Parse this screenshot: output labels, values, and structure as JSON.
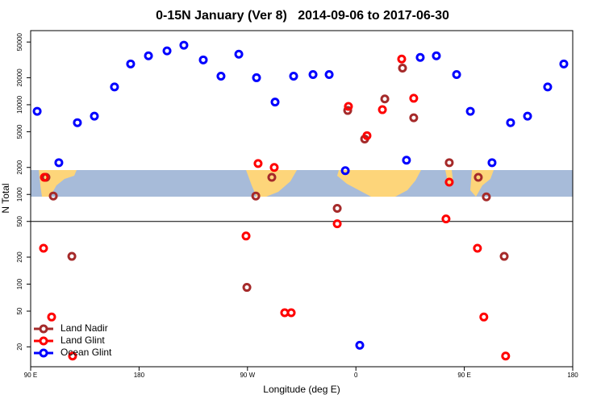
{
  "chart_data": {
    "type": "scatter",
    "title": "0-15N January (Ver 8)   2014-09-06 to 2017-06-30",
    "xlabel": "Longitude (deg E)",
    "ylabel": "N Total",
    "log_y": true,
    "legend": "lower left",
    "hline": 500,
    "xlim": [
      90,
      540
    ],
    "xticks": [
      {
        "value": 90,
        "label": "90 E"
      },
      180,
      {
        "value": 270,
        "label": "90 W"
      },
      {
        "value": 360,
        "label": "0"
      },
      {
        "value": 450,
        "label": "90 E"
      },
      {
        "value": 540,
        "label": "180"
      }
    ],
    "ylim": [
      12,
      67000
    ],
    "yticks": [
      20,
      50,
      100,
      200,
      500,
      1000,
      2000,
      5000,
      10000,
      20000,
      50000
    ],
    "series": [
      {
        "name": "Land Nadir",
        "color": "#a52a2a",
        "x": [
          102.7,
          108.8,
          124.2,
          269.5,
          276.9,
          290.2,
          344.5,
          353.2,
          367.3,
          384.0,
          398.7,
          408.0,
          437.5,
          461.6,
          468.3,
          483.1
        ],
        "values": [
          1550,
          960,
          204,
          92,
          960,
          1550,
          700,
          8630,
          4150,
          11600,
          25600,
          7160,
          2260,
          1550,
          940,
          204
        ]
      },
      {
        "name": "Land Glint",
        "color": "#ff0000",
        "x": [
          101.4,
          100.7,
          107.4,
          124.8,
          278.8,
          268.8,
          292.2,
          300.9,
          306.3,
          344.5,
          353.8,
          369.2,
          382.0,
          398.0,
          408.0,
          434.8,
          437.5,
          460.9,
          466.2,
          484.3
        ],
        "values": [
          1550,
          251,
          43,
          15.8,
          2210,
          344,
          2000,
          48,
          48,
          471,
          9590,
          4520,
          8810,
          32300,
          11800,
          533,
          1370,
          251,
          43,
          15.8
        ]
      },
      {
        "name": "Ocean Glint",
        "color": "#0000ff",
        "x": [
          95.4,
          113.4,
          128.8,
          142.9,
          159.6,
          173.0,
          187.8,
          203.2,
          217.2,
          233.3,
          248.0,
          262.8,
          277.5,
          292.9,
          308.3,
          324.4,
          337.8,
          351.2,
          363.2,
          402.0,
          413.4,
          426.8,
          443.6,
          455.0,
          473.0,
          488.4,
          502.5,
          519.2,
          532.6
        ],
        "values": [
          8450,
          2260,
          6310,
          7460,
          15800,
          28500,
          35100,
          39800,
          46100,
          31600,
          20800,
          36600,
          20000,
          10700,
          20800,
          21700,
          21700,
          1840,
          20.8,
          2410,
          33700,
          35100,
          21700,
          8450,
          2260,
          6310,
          7460,
          15800,
          28500
        ]
      }
    ]
  }
}
